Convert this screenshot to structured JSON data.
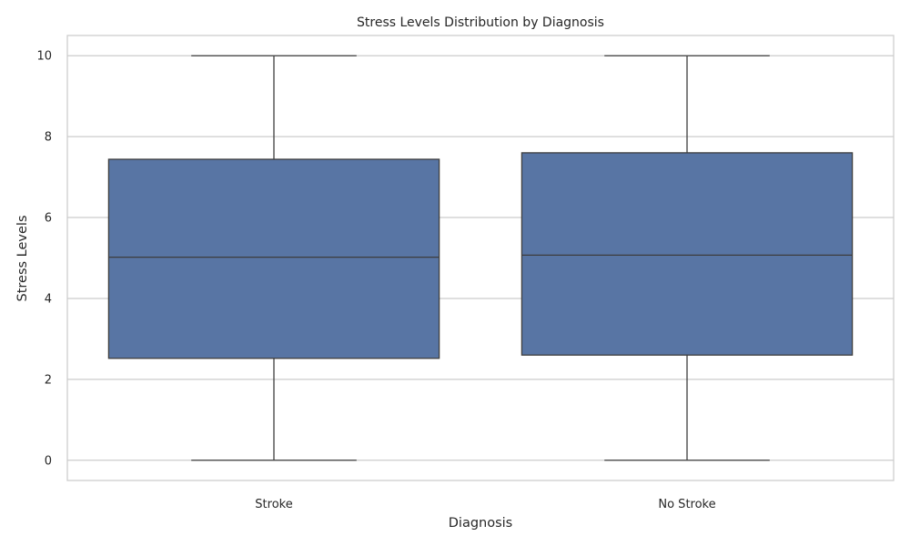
{
  "chart_data": {
    "type": "box",
    "title": "Stress Levels Distribution by Diagnosis",
    "xlabel": "Diagnosis",
    "ylabel": "Stress Levels",
    "ylim": [
      -0.5,
      10.5
    ],
    "yticks": [
      0,
      2,
      4,
      6,
      8,
      10
    ],
    "grid": true,
    "categories": [
      "Stroke",
      "No Stroke"
    ],
    "boxes": [
      {
        "category": "Stroke",
        "min": 0,
        "q1": 2.52,
        "median": 5.02,
        "q3": 7.44,
        "max": 10
      },
      {
        "category": "No Stroke",
        "min": 0,
        "q1": 2.6,
        "median": 5.07,
        "q3": 7.6,
        "max": 10
      }
    ],
    "colors": {
      "box_fill": "#5875a4",
      "box_edge": "#3d3d3d",
      "grid": "#cccccc",
      "frame": "#cccccc",
      "text": "#262626"
    }
  }
}
